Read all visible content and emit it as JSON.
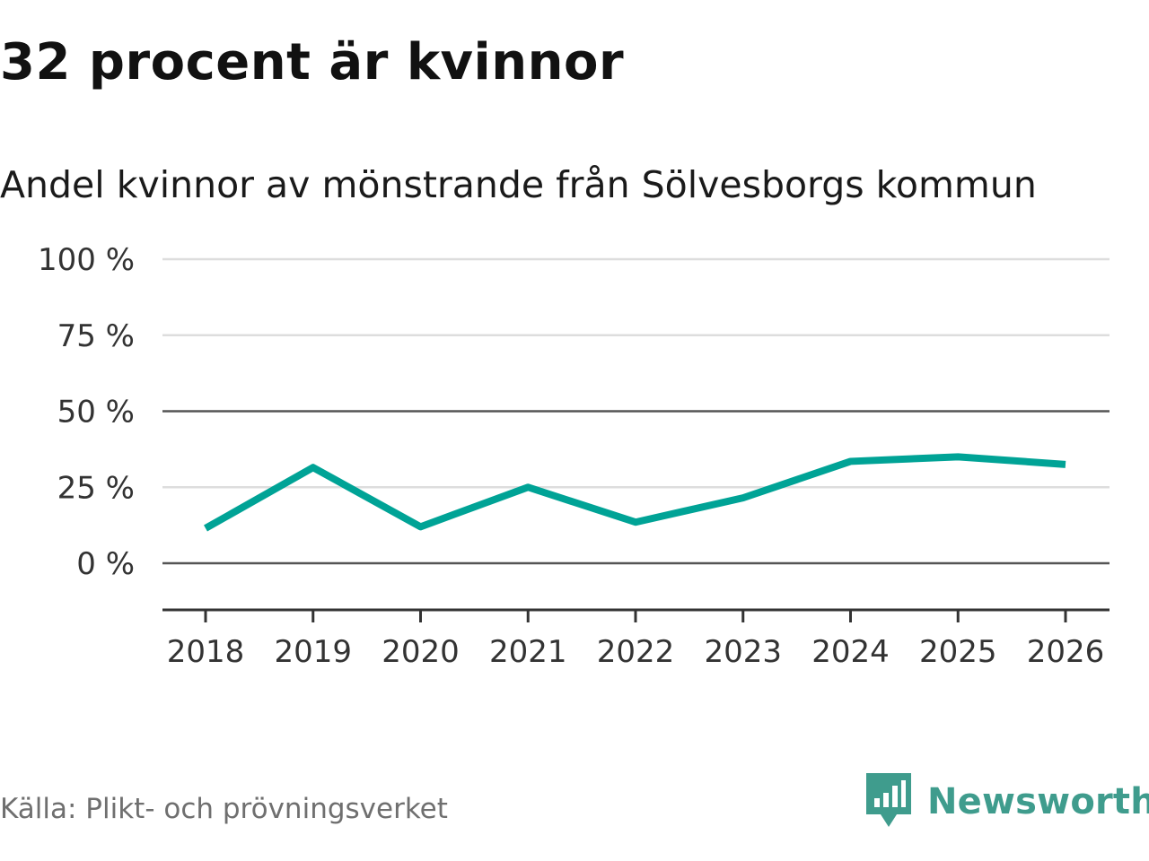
{
  "header": {
    "title": "32 procent är kvinnor",
    "subtitle": "Andel kvinnor av mönstrande från Sölvesborgs kommun"
  },
  "footer": {
    "source": "Källa: Plikt- och prövningsverket",
    "brand": "Newsworthy",
    "brand_icon": "bar-chart-speech-bubble-icon"
  },
  "colors": {
    "series": "#00a396",
    "brand": "#3f9c8d",
    "grid": "#dddddd",
    "axis": "#333333"
  },
  "chart_data": {
    "type": "line",
    "title": "Andel kvinnor av mönstrande från Sölvesborgs kommun",
    "xlabel": "",
    "ylabel": "",
    "x": [
      "2018",
      "2019",
      "2020",
      "2021",
      "2022",
      "2023",
      "2024",
      "2025",
      "2026"
    ],
    "series": [
      {
        "name": "Andel kvinnor",
        "values": [
          11.5,
          31.5,
          12,
          25,
          13.5,
          21.5,
          33.5,
          35,
          32.5
        ]
      }
    ],
    "ylim": [
      0,
      100
    ],
    "yticks": [
      0,
      25,
      50,
      75,
      100
    ],
    "ytick_labels": [
      "0 %",
      "25 %",
      "50 %",
      "75 %",
      "100 %"
    ],
    "grid": true,
    "legend": "none"
  }
}
